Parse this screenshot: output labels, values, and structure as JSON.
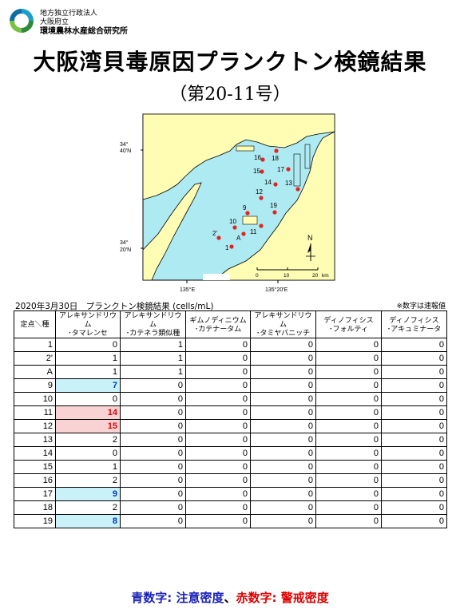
{
  "org": {
    "line1": "地方独立行政法人",
    "line2": "大阪府立",
    "line3": "環境農林水産総合研究所"
  },
  "title": "大阪湾貝毒原因プランクトン検鏡結果",
  "subtitle": "（第20-11号）",
  "map": {
    "lat_upper": [
      "34°",
      "40′N"
    ],
    "lat_lower": [
      "34°",
      "20′N"
    ],
    "lon_left": "135°E",
    "lon_right": "135°20′E",
    "north": "N",
    "scale_labels": [
      "0",
      "10",
      "20",
      "km"
    ],
    "stations": [
      "16",
      "18",
      "15",
      "17",
      "14",
      "13",
      "12",
      "9",
      "19",
      "10",
      "11",
      "2'",
      "A",
      "1"
    ]
  },
  "caption": "2020年3月30日　プランクトン検鏡結果 (cells/mL)",
  "note": "※数字は速報値",
  "table": {
    "corner": "定点＼種",
    "headers": [
      [
        "アレキサンドリウム",
        "･タマレンセ"
      ],
      [
        "アレキサンドリウム",
        "･カテネラ類似種"
      ],
      [
        "ギムノディニウム",
        "･カテナータム"
      ],
      [
        "アレキサンドリウム",
        "･タミヤバニッチ"
      ],
      [
        "ディノフィシス",
        "･フォルティ"
      ],
      [
        "ディノフィシス",
        "･アキュミナータ"
      ]
    ],
    "rows": [
      {
        "station": "1",
        "values": [
          "0",
          "1",
          "0",
          "0",
          "0",
          "0"
        ],
        "flag": ""
      },
      {
        "station": "2'",
        "values": [
          "1",
          "1",
          "0",
          "0",
          "0",
          "0"
        ],
        "flag": ""
      },
      {
        "station": "A",
        "values": [
          "1",
          "1",
          "0",
          "0",
          "0",
          "0"
        ],
        "flag": ""
      },
      {
        "station": "9",
        "values": [
          "7",
          "0",
          "0",
          "0",
          "0",
          "0"
        ],
        "flag": "blue"
      },
      {
        "station": "10",
        "values": [
          "0",
          "0",
          "0",
          "0",
          "0",
          "0"
        ],
        "flag": ""
      },
      {
        "station": "11",
        "values": [
          "14",
          "0",
          "0",
          "0",
          "0",
          "0"
        ],
        "flag": "red"
      },
      {
        "station": "12",
        "values": [
          "15",
          "0",
          "0",
          "0",
          "0",
          "0"
        ],
        "flag": "red"
      },
      {
        "station": "13",
        "values": [
          "2",
          "0",
          "0",
          "0",
          "0",
          "0"
        ],
        "flag": ""
      },
      {
        "station": "14",
        "values": [
          "0",
          "0",
          "0",
          "0",
          "0",
          "0"
        ],
        "flag": ""
      },
      {
        "station": "15",
        "values": [
          "1",
          "0",
          "0",
          "0",
          "0",
          "0"
        ],
        "flag": ""
      },
      {
        "station": "16",
        "values": [
          "2",
          "0",
          "0",
          "0",
          "0",
          "0"
        ],
        "flag": ""
      },
      {
        "station": "17",
        "values": [
          "9",
          "0",
          "0",
          "0",
          "0",
          "0"
        ],
        "flag": "blue"
      },
      {
        "station": "18",
        "values": [
          "2",
          "0",
          "0",
          "0",
          "0",
          "0"
        ],
        "flag": ""
      },
      {
        "station": "19",
        "values": [
          "8",
          "0",
          "0",
          "0",
          "0",
          "0"
        ],
        "flag": "blue"
      }
    ]
  },
  "legend": {
    "blue_text": "青数字: 注意密度",
    "separator": "、",
    "red_text": "赤数字: 警戒密度"
  },
  "colors": {
    "sea": "#aeeaf2",
    "land": "#fefdb3",
    "station": "#e42222",
    "blue_text": "#1a22b8",
    "red_text": "#e00000",
    "blue_cell": "#c8f2f7",
    "red_cell": "#f9d3d3"
  }
}
